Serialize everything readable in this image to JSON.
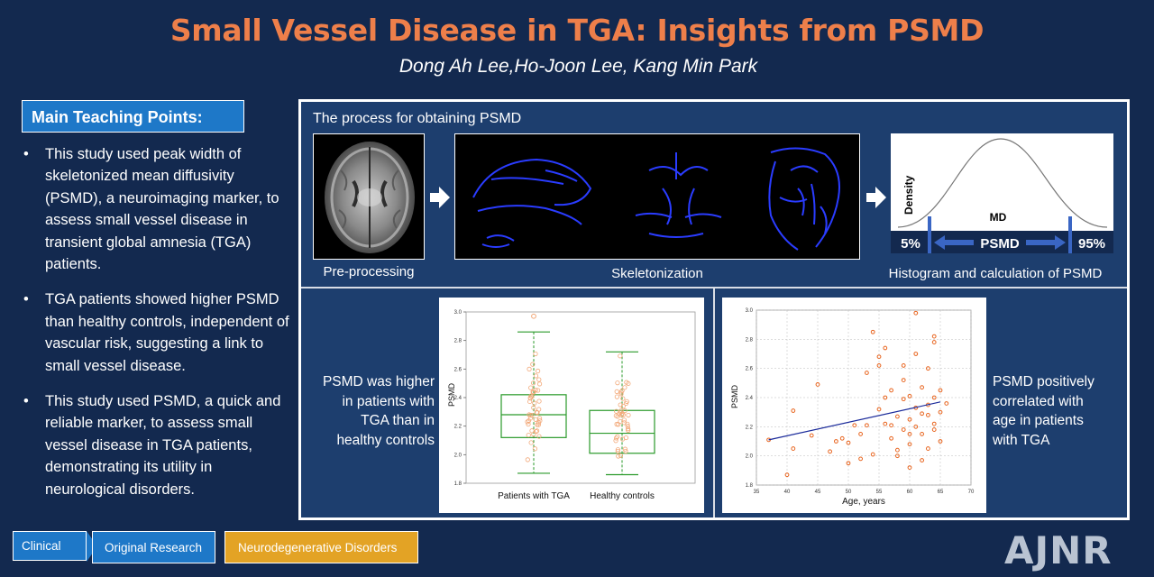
{
  "header": {
    "title": "Small Vessel Disease in TGA: Insights from PSMD",
    "authors": "Dong Ah Lee,Ho-Joon Lee, Kang Min Park"
  },
  "teaching": {
    "heading": "Main Teaching Points:",
    "points": [
      "This study used peak width of skeletonized mean diffusivity (PSMD), a neuroimaging marker, to assess small vessel disease in transient global amnesia (TGA) patients.",
      "TGA patients showed higher PSMD than healthy controls, independent of vascular risk, suggesting a link to small vessel disease.",
      "This study used PSMD, a quick and reliable marker, to assess small vessel disease in TGA patients, demonstrating its utility in neurological disorders."
    ]
  },
  "process": {
    "title": "The process for obtaining PSMD",
    "captions": [
      "Pre-processing",
      "Skeletonization",
      "Histogram and calculation of PSMD"
    ],
    "histogram": {
      "ylabel": "Density",
      "xlabel": "MD",
      "left_pct": "5%",
      "right_pct": "95%",
      "range_label": "PSMD"
    }
  },
  "left_text": "PSMD was higher in patients with TGA than in healthy controls",
  "right_text": "PSMD positively correlated with age in patients with TGA",
  "chart_data": [
    {
      "type": "box",
      "ylabel": "PSMD",
      "ylim": [
        1.8,
        3.0
      ],
      "yticks": [
        "1.8",
        "2.0",
        "2.2",
        "2.4",
        "2.6",
        "2.8",
        "3.0"
      ],
      "categories": [
        "Patients with TGA",
        "Healthy controls"
      ],
      "boxes": [
        {
          "name": "Patients with TGA",
          "min": 1.87,
          "q1": 2.12,
          "median": 2.28,
          "q3": 2.42,
          "max": 2.86
        },
        {
          "name": "Healthy controls",
          "min": 1.86,
          "q1": 2.01,
          "median": 2.15,
          "q3": 2.31,
          "max": 2.72
        }
      ],
      "outliers": [
        {
          "category": 0,
          "y": 2.97
        }
      ]
    },
    {
      "type": "scatter",
      "xlabel": "Age, years",
      "ylabel": "PSMD",
      "xlim": [
        35,
        70
      ],
      "ylim": [
        1.8,
        3.0
      ],
      "xticks": [
        "35",
        "40",
        "45",
        "50",
        "55",
        "60",
        "65",
        "70"
      ],
      "yticks": [
        "1.8",
        "2.0",
        "2.2",
        "2.4",
        "2.6",
        "2.8",
        "3.0"
      ],
      "fit_line": {
        "x": [
          37,
          65
        ],
        "y": [
          2.11,
          2.37
        ]
      },
      "points": [
        [
          37,
          2.11
        ],
        [
          40,
          1.87
        ],
        [
          41,
          2.05
        ],
        [
          41,
          2.31
        ],
        [
          44,
          2.14
        ],
        [
          45,
          2.49
        ],
        [
          47,
          2.03
        ],
        [
          48,
          2.1
        ],
        [
          49,
          2.12
        ],
        [
          50,
          1.95
        ],
        [
          50,
          2.09
        ],
        [
          51,
          2.21
        ],
        [
          52,
          2.15
        ],
        [
          53,
          2.57
        ],
        [
          54,
          2.85
        ],
        [
          54,
          2.01
        ],
        [
          55,
          2.32
        ],
        [
          55,
          2.68
        ],
        [
          56,
          2.22
        ],
        [
          56,
          2.4
        ],
        [
          57,
          2.12
        ],
        [
          57,
          2.45
        ],
        [
          58,
          2.0
        ],
        [
          58,
          2.27
        ],
        [
          59,
          2.18
        ],
        [
          59,
          2.39
        ],
        [
          59,
          2.62
        ],
        [
          60,
          2.08
        ],
        [
          60,
          2.25
        ],
        [
          60,
          2.41
        ],
        [
          61,
          2.2
        ],
        [
          61,
          2.33
        ],
        [
          61,
          2.98
        ],
        [
          62,
          2.15
        ],
        [
          62,
          2.47
        ],
        [
          62,
          1.97
        ],
        [
          63,
          2.28
        ],
        [
          63,
          2.6
        ],
        [
          63,
          2.05
        ],
        [
          64,
          2.4
        ],
        [
          64,
          2.82
        ],
        [
          64,
          2.18
        ],
        [
          65,
          2.3
        ],
        [
          65,
          2.45
        ],
        [
          65,
          2.1
        ],
        [
          55,
          2.62
        ],
        [
          57,
          2.21
        ],
        [
          59,
          2.52
        ],
        [
          61,
          2.7
        ],
        [
          63,
          2.35
        ],
        [
          58,
          2.04
        ],
        [
          60,
          2.15
        ],
        [
          62,
          2.29
        ],
        [
          64,
          2.22
        ],
        [
          56,
          2.74
        ],
        [
          53,
          2.21
        ],
        [
          52,
          1.98
        ],
        [
          60,
          1.92
        ],
        [
          64,
          2.78
        ],
        [
          66,
          2.36
        ]
      ]
    }
  ],
  "tags": [
    "Clinical",
    "Original Research",
    "Neurodegenerative Disorders"
  ],
  "logo": "AJNR"
}
